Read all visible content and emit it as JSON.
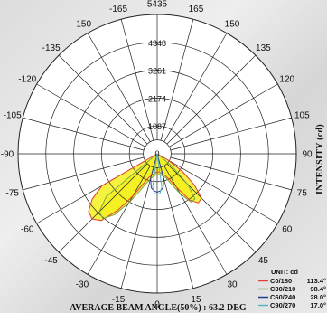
{
  "chart_data": {
    "type": "polar",
    "ylabel": "INTENSITY (cd)",
    "radial_ticks": [
      0,
      1087,
      2174,
      3261,
      4348,
      5435
    ],
    "rmax": 5435,
    "angle_ticks": [
      0,
      15,
      30,
      45,
      60,
      75,
      90,
      105,
      120,
      135,
      150,
      165,
      180,
      -165,
      -150,
      -135,
      -120,
      -105,
      -90,
      -75,
      -60,
      -45,
      -30,
      -15
    ],
    "angle_tick_labels": [
      "0",
      "15",
      "30",
      "45",
      "60",
      "75",
      "90",
      "105",
      "120",
      "135",
      "150",
      "165",
      "5435",
      "-165",
      "-150",
      "-135",
      "-120",
      "-105",
      "-90",
      "-75",
      "-60",
      "-45",
      "-30",
      "-15"
    ],
    "unit_label": "UNIT: cd",
    "series": [
      {
        "name": "C0/180",
        "beam_angle": "113.4°",
        "color": "#e0403a",
        "points": [
          [
            -65,
            0
          ],
          [
            -60,
            2500
          ],
          [
            -55,
            3100
          ],
          [
            -50,
            3500
          ],
          [
            -45,
            3600
          ],
          [
            -40,
            3400
          ],
          [
            -35,
            2700
          ],
          [
            -30,
            1900
          ],
          [
            -25,
            1300
          ],
          [
            -20,
            1000
          ],
          [
            -10,
            800
          ],
          [
            0,
            700
          ],
          [
            10,
            750
          ],
          [
            20,
            900
          ],
          [
            25,
            1100
          ],
          [
            30,
            1500
          ],
          [
            35,
            2200
          ],
          [
            40,
            2500
          ],
          [
            45,
            2450
          ],
          [
            50,
            1900
          ],
          [
            55,
            1200
          ],
          [
            60,
            500
          ],
          [
            65,
            0
          ]
        ]
      },
      {
        "name": "C30/210",
        "beam_angle": "98.4°",
        "color": "#7aa84e",
        "points": [
          [
            -55,
            0
          ],
          [
            -50,
            2600
          ],
          [
            -45,
            3200
          ],
          [
            -40,
            3300
          ],
          [
            -35,
            2900
          ],
          [
            -30,
            2200
          ],
          [
            -25,
            1600
          ],
          [
            -20,
            1200
          ],
          [
            -10,
            900
          ],
          [
            0,
            800
          ],
          [
            10,
            850
          ],
          [
            20,
            1000
          ],
          [
            25,
            1300
          ],
          [
            30,
            1800
          ],
          [
            35,
            2300
          ],
          [
            40,
            2300
          ],
          [
            45,
            1700
          ],
          [
            50,
            700
          ],
          [
            55,
            0
          ]
        ]
      },
      {
        "name": "C60/240",
        "beam_angle": "28.0°",
        "color": "#233c8c",
        "points": [
          [
            -20,
            0
          ],
          [
            -15,
            1000
          ],
          [
            -10,
            1350
          ],
          [
            -5,
            1450
          ],
          [
            0,
            1500
          ],
          [
            5,
            1450
          ],
          [
            10,
            1350
          ],
          [
            15,
            1000
          ],
          [
            20,
            0
          ]
        ]
      },
      {
        "name": "C90/270",
        "beam_angle": "17.0°",
        "color": "#5ab4c8",
        "points": [
          [
            -12,
            0
          ],
          [
            -8,
            1300
          ],
          [
            -4,
            1550
          ],
          [
            0,
            1600
          ],
          [
            4,
            1550
          ],
          [
            8,
            1300
          ],
          [
            12,
            0
          ]
        ]
      }
    ],
    "fill_color": "#f3f01e"
  },
  "footer": {
    "label": "AVERAGE BEAM ANGLE(50%) : 63.2 DEG"
  }
}
